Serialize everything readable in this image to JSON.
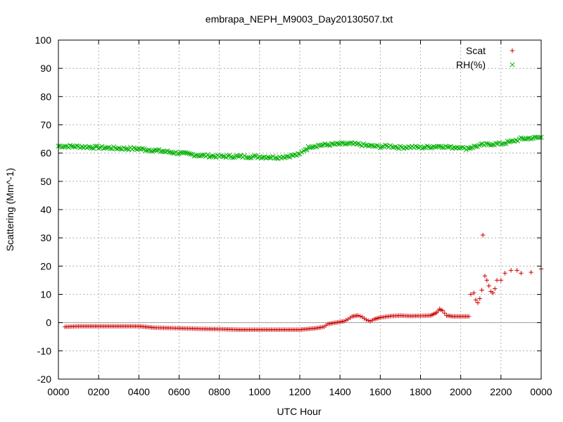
{
  "chart_data": {
    "type": "scatter",
    "title": "embrapa_NEPH_M9003_Day20130507.txt",
    "xlabel": "UTC Hour",
    "ylabel": "Scattering (Mm^-1)",
    "xlim": [
      0,
      24
    ],
    "ylim": [
      -20,
      100
    ],
    "grid": true,
    "legend_position": "top-right",
    "x_ticks": [
      "0000",
      "0200",
      "0400",
      "0600",
      "0800",
      "1000",
      "1200",
      "1400",
      "1600",
      "1800",
      "2000",
      "2200",
      "0000"
    ],
    "y_ticks": [
      "-20",
      "-10",
      "0",
      "10",
      "20",
      "30",
      "40",
      "50",
      "60",
      "70",
      "80",
      "90",
      "100"
    ],
    "series": [
      {
        "name": "Scat",
        "marker": "+",
        "color": "#cc0000",
        "points": [
          [
            0.33,
            -1.5
          ],
          [
            1,
            -1.3
          ],
          [
            2,
            -1.3
          ],
          [
            3,
            -1.3
          ],
          [
            4,
            -1.3
          ],
          [
            4.8,
            -1.8
          ],
          [
            6,
            -2
          ],
          [
            7,
            -2.2
          ],
          [
            8,
            -2.3
          ],
          [
            9,
            -2.5
          ],
          [
            10,
            -2.5
          ],
          [
            11,
            -2.5
          ],
          [
            12,
            -2.5
          ],
          [
            12.8,
            -2
          ],
          [
            13.2,
            -1.5
          ],
          [
            13.4,
            -0.5
          ],
          [
            13.8,
            0
          ],
          [
            14.2,
            0.5
          ],
          [
            14.4,
            1.2
          ],
          [
            14.6,
            2.2
          ],
          [
            14.9,
            2.5
          ],
          [
            15.1,
            2
          ],
          [
            15.3,
            1
          ],
          [
            15.5,
            0.5
          ],
          [
            15.7,
            1.2
          ],
          [
            16,
            1.8
          ],
          [
            16.5,
            2.3
          ],
          [
            17,
            2.5
          ],
          [
            17.5,
            2.3
          ],
          [
            18,
            2.4
          ],
          [
            18.5,
            2.5
          ],
          [
            18.8,
            3.5
          ],
          [
            18.95,
            4.8
          ],
          [
            19.1,
            4.2
          ],
          [
            19.3,
            2.5
          ],
          [
            19.6,
            2.2
          ],
          [
            20,
            2.2
          ],
          [
            20.4,
            2.2
          ],
          [
            20.5,
            10
          ],
          [
            20.65,
            10.5
          ],
          [
            20.75,
            8
          ],
          [
            20.85,
            7
          ],
          [
            20.95,
            8.5
          ],
          [
            21.05,
            11.5
          ],
          [
            21.1,
            31
          ],
          [
            21.2,
            16.5
          ],
          [
            21.3,
            15
          ],
          [
            21.4,
            13
          ],
          [
            21.5,
            11
          ],
          [
            21.6,
            10.5
          ],
          [
            21.7,
            12
          ],
          [
            21.8,
            15
          ],
          [
            22,
            15
          ],
          [
            22.2,
            17.5
          ],
          [
            22.5,
            18.5
          ],
          [
            22.8,
            18.5
          ],
          [
            23,
            17.5
          ],
          [
            23.5,
            17.8
          ],
          [
            24,
            19
          ]
        ]
      },
      {
        "name": "RH(%)",
        "marker": "x",
        "color": "#00b000",
        "points": [
          [
            0,
            62.5
          ],
          [
            1,
            62.3
          ],
          [
            2,
            62
          ],
          [
            3,
            61.7
          ],
          [
            4,
            61.5
          ],
          [
            5,
            60.8
          ],
          [
            6,
            60
          ],
          [
            7,
            59.2
          ],
          [
            8,
            58.8
          ],
          [
            9,
            58.8
          ],
          [
            10,
            58.7
          ],
          [
            11,
            58.5
          ],
          [
            12,
            59.5
          ],
          [
            12.2,
            61
          ],
          [
            12.5,
            62.3
          ],
          [
            13,
            62.8
          ],
          [
            14,
            63.2
          ],
          [
            14.5,
            63.3
          ],
          [
            15,
            63
          ],
          [
            15.5,
            62.5
          ],
          [
            16,
            62.3
          ],
          [
            16.5,
            62.5
          ],
          [
            17,
            62
          ],
          [
            17.5,
            62.2
          ],
          [
            18,
            62
          ],
          [
            18.5,
            62.2
          ],
          [
            19,
            62.5
          ],
          [
            19.5,
            62
          ],
          [
            20,
            62.2
          ],
          [
            20.2,
            61.5
          ],
          [
            20.5,
            62
          ],
          [
            21,
            62.8
          ],
          [
            21.5,
            63.2
          ],
          [
            22,
            63.3
          ],
          [
            22.5,
            64
          ],
          [
            23,
            65
          ],
          [
            23.5,
            65.3
          ],
          [
            24,
            65.5
          ]
        ]
      }
    ]
  }
}
